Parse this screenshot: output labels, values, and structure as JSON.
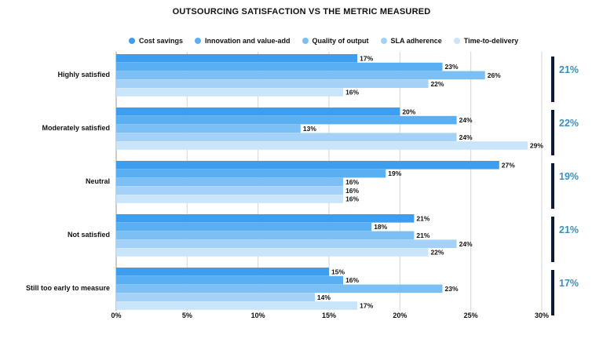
{
  "chart_data": {
    "type": "bar",
    "orientation": "horizontal",
    "title": "OUTSOURCING SATISFACTION VS THE METRIC MEASURED",
    "categories": [
      "Highly satisfied",
      "Moderately satisfied",
      "Neutral",
      "Not satisfied",
      "Still too early to measure"
    ],
    "series": [
      {
        "name": "Cost savings",
        "color": "#3d9ef0",
        "values": [
          17,
          20,
          27,
          21,
          15
        ]
      },
      {
        "name": "Innovation and value-add",
        "color": "#5aaef2",
        "values": [
          23,
          24,
          19,
          18,
          16
        ]
      },
      {
        "name": "Quality of output",
        "color": "#7cbff4",
        "values": [
          26,
          13,
          16,
          21,
          23
        ]
      },
      {
        "name": "SLA adherence",
        "color": "#a3d1f7",
        "values": [
          22,
          24,
          16,
          24,
          14
        ]
      },
      {
        "name": "Time-to-delivery",
        "color": "#cae4fa",
        "values": [
          16,
          29,
          16,
          22,
          17
        ]
      }
    ],
    "xlim": [
      0,
      30
    ],
    "xticks": [
      "0%",
      "5%",
      "10%",
      "15%",
      "20%",
      "25%",
      "30%"
    ],
    "averages": [
      "21%",
      "22%",
      "19%",
      "21%",
      "17%"
    ],
    "average_color": "#3a8fc2",
    "marker_color": "#0c1a3a",
    "grid": true
  }
}
